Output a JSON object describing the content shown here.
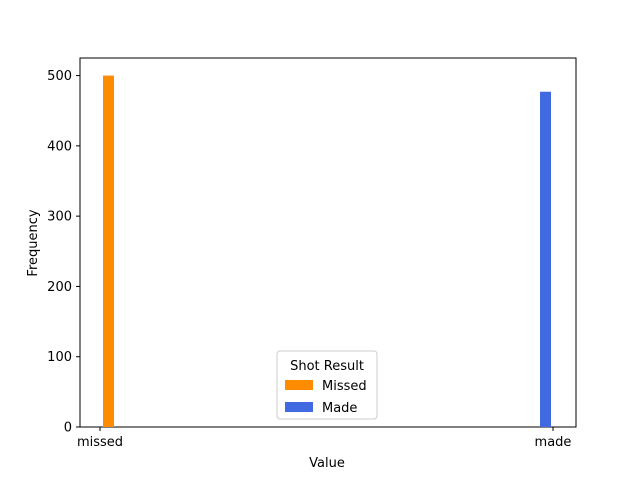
{
  "chart_data": {
    "type": "bar",
    "title": "",
    "xlabel": "Value",
    "ylabel": "Frequency",
    "categories": [
      "missed",
      "made"
    ],
    "ylim": [
      0,
      525
    ],
    "yticks": [
      0,
      100,
      200,
      300,
      400,
      500
    ],
    "grid": false,
    "series": [
      {
        "name": "Missed",
        "category": "missed",
        "value": 500,
        "color": "#ff8c00"
      },
      {
        "name": "Made",
        "category": "made",
        "value": 477,
        "color": "#4169e1"
      }
    ],
    "legend": {
      "title": "Shot Result",
      "placement": "lower-center",
      "entries": [
        "Missed",
        "Made"
      ]
    }
  }
}
